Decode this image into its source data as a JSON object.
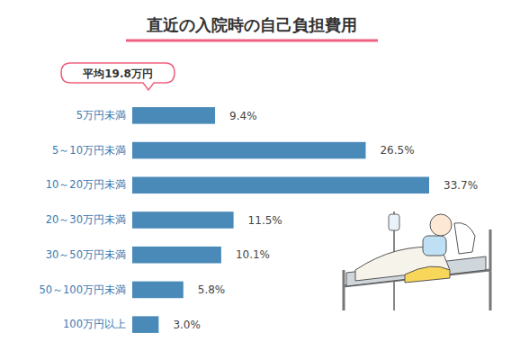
{
  "chart_data": {
    "type": "bar",
    "title": "直近の入院時の自己負担費用",
    "annotations": [
      "平均19.8万円"
    ],
    "categories": [
      "5万円未満",
      "5～10万円未満",
      "10～20万円未満",
      "20～30万円未満",
      "30～50万円未満",
      "50～100万円未満",
      "100万円以上"
    ],
    "values": [
      9.4,
      26.5,
      33.7,
      11.5,
      10.1,
      5.8,
      3.0
    ],
    "value_labels": [
      "9.4%",
      "26.5%",
      "33.7%",
      "11.5%",
      "10.1%",
      "5.8%",
      "3.0%"
    ],
    "color": "#4a8ab9",
    "orientation": "horizontal",
    "data_labels": true,
    "tick_labels": "y",
    "grid": false
  }
}
